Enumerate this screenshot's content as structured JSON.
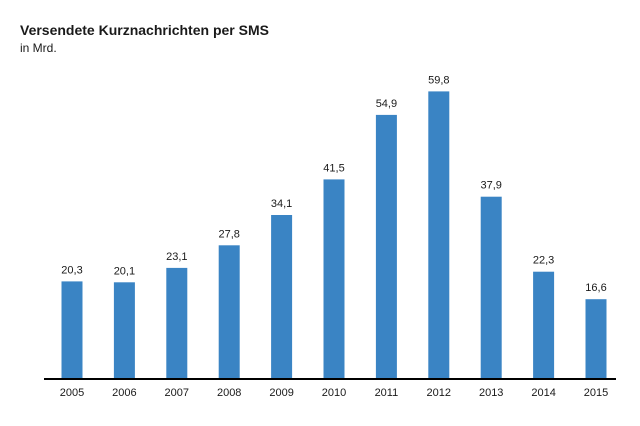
{
  "chart_data": {
    "type": "bar",
    "title": "Versendete Kurznachrichten per SMS",
    "subtitle": "in Mrd.",
    "xlabel": "",
    "ylabel": "",
    "categories": [
      "2005",
      "2006",
      "2007",
      "2008",
      "2009",
      "2010",
      "2011",
      "2012",
      "2013",
      "2014",
      "2015"
    ],
    "values": [
      20.3,
      20.1,
      23.1,
      27.8,
      34.1,
      41.5,
      54.9,
      59.8,
      37.9,
      22.3,
      16.6
    ],
    "value_labels": [
      "20,3",
      "20,1",
      "23,1",
      "27,8",
      "34,1",
      "41,5",
      "54,9",
      "59,8",
      "37,9",
      "22,3",
      "16,6"
    ],
    "ylim": [
      0,
      60
    ],
    "grid": false,
    "legend": "none",
    "bar_color": "#3a84c4",
    "axis_color": "#000000"
  }
}
